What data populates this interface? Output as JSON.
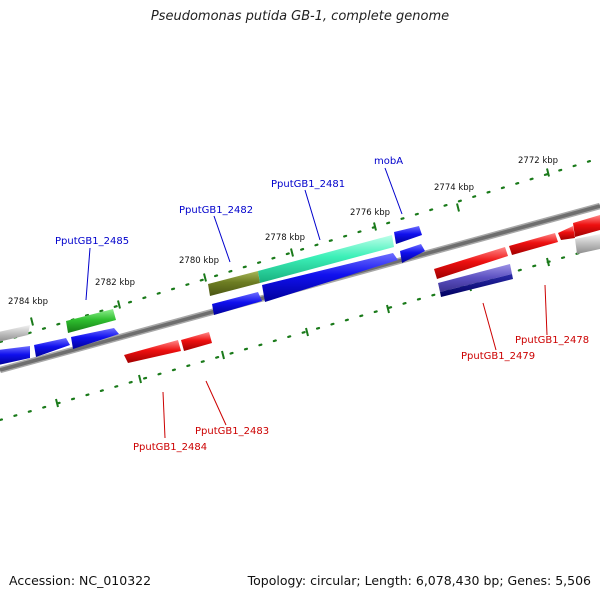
{
  "title": "Pseudomonas putida GB-1, complete genome",
  "footer": {
    "accession": "Accession: NC_010322",
    "topology": "Topology: circular; Length: 6,078,430 bp; Genes: 5,506"
  },
  "ticks": {
    "k2772": "2772 kbp",
    "k2774": "2774 kbp",
    "k2776": "2776 kbp",
    "k2778": "2778 kbp",
    "k2780": "2780 kbp",
    "k2782": "2782 kbp",
    "k2784": "2784 kbp"
  },
  "genes": {
    "mobA": "mobA",
    "g2481": "PputGB1_2481",
    "g2482": "PputGB1_2482",
    "g2485": "PputGB1_2485",
    "g2478": "PputGB1_2478",
    "g2479": "PputGB1_2479",
    "g2483": "PputGB1_2483",
    "g2484": "PputGB1_2484"
  },
  "colors": {
    "forward_label": "#0000cc",
    "reverse_label": "#cc0000",
    "backbone": "#7a7a7a",
    "tick": "#1a7a1a"
  }
}
